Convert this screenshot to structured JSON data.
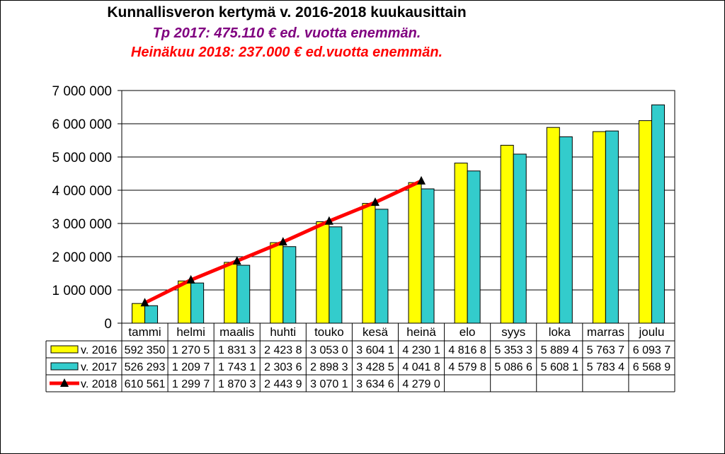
{
  "title": "Kunnallisveron kertymä v. 2016-2018 kuukausittain",
  "subtitle1": "Tp 2017: 475.110 € ed. vuotta enemmän.",
  "subtitle2": "Heinäkuu 2018: 237.000 € ed.vuotta enemmän.",
  "colors": {
    "v2016": "#ffff00",
    "v2017": "#33cccc",
    "v2018": "#ff0000",
    "marker": "#000000"
  },
  "chart_data": {
    "type": "bar",
    "categories": [
      "tammi",
      "helmi",
      "maalis",
      "huhti",
      "touko",
      "kesä",
      "heinä",
      "elo",
      "syys",
      "loka",
      "marras",
      "joulu"
    ],
    "ylim": [
      0,
      7000000
    ],
    "yticks": [
      0,
      1000000,
      2000000,
      3000000,
      4000000,
      5000000,
      6000000,
      7000000
    ],
    "ytick_labels": [
      "0",
      "1 000 000",
      "2 000 000",
      "3 000 000",
      "4 000 000",
      "5 000 000",
      "6 000 000",
      "7 000 000"
    ],
    "grid": true,
    "legend": "data-table",
    "series": [
      {
        "name": "v. 2016",
        "type": "bar",
        "values": [
          592350,
          1270500,
          1831300,
          2423800,
          3053000,
          3604100,
          4230100,
          4816800,
          5353300,
          5889400,
          5763700,
          6093700
        ],
        "table_labels": [
          "592 350",
          "1 270 5",
          "1 831 3",
          "2 423 8",
          "3 053 0",
          "3 604 1",
          "4 230 1",
          "4 816 8",
          "5 353 3",
          "5 889 4",
          "5 763 7",
          "6 093 7"
        ]
      },
      {
        "name": "v. 2017",
        "type": "bar",
        "values": [
          526293,
          1209700,
          1743100,
          2303600,
          2898300,
          3428500,
          4041800,
          4579800,
          5086600,
          5608100,
          5783400,
          6568900
        ],
        "table_labels": [
          "526 293",
          "1 209 7",
          "1 743 1",
          "2 303 6",
          "2 898 3",
          "3 428 5",
          "4 041 8",
          "4 579 8",
          "5 086 6",
          "5 608 1",
          "5 783 4",
          "6 568 9"
        ]
      },
      {
        "name": "v. 2018",
        "type": "line",
        "values": [
          610561,
          1299700,
          1870300,
          2443900,
          3070100,
          3634600,
          4279000,
          null,
          null,
          null,
          null,
          null
        ],
        "table_labels": [
          "610 561",
          "1 299 7",
          "1 870 3",
          "2 443 9",
          "3 070 1",
          "3 634 6",
          "4 279 0",
          "",
          "",
          "",
          "",
          ""
        ]
      }
    ]
  }
}
